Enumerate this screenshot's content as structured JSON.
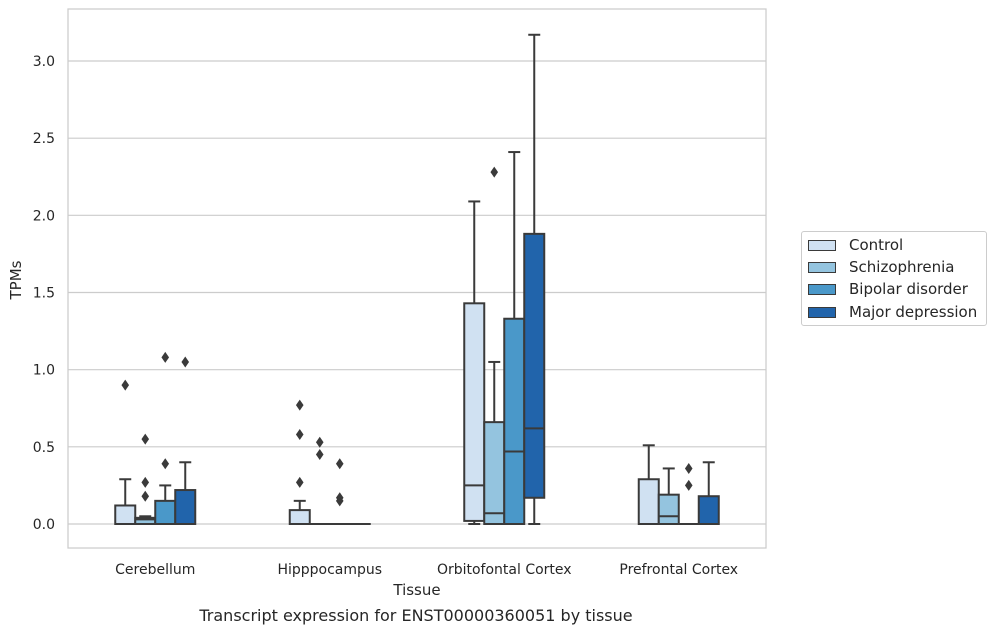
{
  "caption": "Transcript expression for ENST00000360051 by tissue",
  "chart_data": {
    "type": "box",
    "xlabel": "Tissue",
    "ylabel": "TPMs",
    "ylim": [
      -0.15,
      3.35
    ],
    "yticks": [
      0.0,
      0.5,
      1.0,
      1.5,
      2.0,
      2.5,
      3.0
    ],
    "ytick_labels": [
      "0.0",
      "0.5",
      "1.0",
      "1.5",
      "2.0",
      "2.5",
      "3.0"
    ],
    "grid": "horizontal",
    "legend_placement": "right",
    "categories": [
      "Cerebellum",
      "Hipppocampus",
      "Orbitofontal Cortex",
      "Prefrontal Cortex"
    ],
    "series": [
      {
        "name": "Control",
        "color": "#d0e1f2",
        "boxes": [
          {
            "whislo": 0.0,
            "q1": 0.0,
            "med": 0.0,
            "q3": 0.12,
            "whishi": 0.29,
            "fliers": [
              0.9
            ]
          },
          {
            "whislo": 0.0,
            "q1": 0.0,
            "med": 0.0,
            "q3": 0.09,
            "whishi": 0.15,
            "fliers": [
              0.27,
              0.58,
              0.77
            ]
          },
          {
            "whislo": 0.0,
            "q1": 0.02,
            "med": 0.25,
            "q3": 1.43,
            "whishi": 2.09,
            "fliers": []
          },
          {
            "whislo": 0.0,
            "q1": 0.0,
            "med": 0.0,
            "q3": 0.29,
            "whishi": 0.51,
            "fliers": []
          }
        ]
      },
      {
        "name": "Schizophrenia",
        "color": "#94c4df",
        "boxes": [
          {
            "whislo": 0.0,
            "q1": 0.0,
            "med": 0.03,
            "q3": 0.04,
            "whishi": 0.05,
            "fliers": [
              0.18,
              0.27,
              0.55
            ]
          },
          {
            "whislo": 0.0,
            "q1": 0.0,
            "med": 0.0,
            "q3": 0.0,
            "whishi": 0.0,
            "fliers": [
              0.45,
              0.53
            ]
          },
          {
            "whislo": 0.0,
            "q1": 0.0,
            "med": 0.07,
            "q3": 0.66,
            "whishi": 1.05,
            "fliers": [
              2.28
            ]
          },
          {
            "whislo": 0.0,
            "q1": 0.0,
            "med": 0.05,
            "q3": 0.19,
            "whishi": 0.36,
            "fliers": []
          }
        ]
      },
      {
        "name": "Bipolar disorder",
        "color": "#4a98c9",
        "boxes": [
          {
            "whislo": 0.0,
            "q1": 0.0,
            "med": 0.0,
            "q3": 0.15,
            "whishi": 0.25,
            "fliers": [
              0.39,
              1.08
            ]
          },
          {
            "whislo": 0.0,
            "q1": 0.0,
            "med": 0.0,
            "q3": 0.0,
            "whishi": 0.0,
            "fliers": [
              0.15,
              0.17,
              0.39
            ]
          },
          {
            "whislo": 0.0,
            "q1": 0.0,
            "med": 0.47,
            "q3": 1.33,
            "whishi": 2.41,
            "fliers": []
          },
          {
            "whislo": 0.0,
            "q1": 0.0,
            "med": 0.0,
            "q3": 0.0,
            "whishi": 0.0,
            "fliers": [
              0.25,
              0.36
            ]
          }
        ]
      },
      {
        "name": "Major depression",
        "color": "#2164ab",
        "boxes": [
          {
            "whislo": 0.0,
            "q1": 0.0,
            "med": 0.0,
            "q3": 0.22,
            "whishi": 0.4,
            "fliers": [
              1.05
            ]
          },
          {
            "whislo": 0.0,
            "q1": 0.0,
            "med": 0.0,
            "q3": 0.0,
            "whishi": 0.0,
            "fliers": []
          },
          {
            "whislo": 0.0,
            "q1": 0.17,
            "med": 0.62,
            "q3": 1.88,
            "whishi": 3.17,
            "fliers": []
          },
          {
            "whislo": 0.0,
            "q1": 0.0,
            "med": 0.0,
            "q3": 0.18,
            "whishi": 0.4,
            "fliers": []
          }
        ]
      }
    ]
  }
}
